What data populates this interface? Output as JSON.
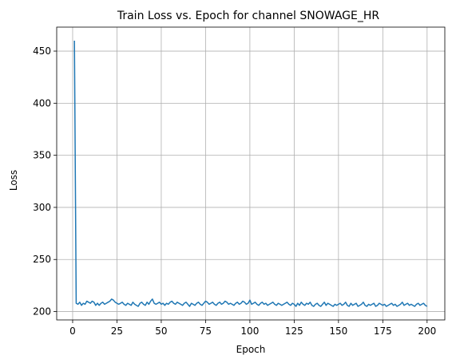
{
  "chart_data": {
    "type": "line",
    "title": "Train Loss vs. Epoch for channel SNOWAGE_HR",
    "xlabel": "Epoch",
    "ylabel": "Loss",
    "xlim": [
      -9,
      210
    ],
    "ylim": [
      192,
      473
    ],
    "xticks": [
      0,
      25,
      50,
      75,
      100,
      125,
      150,
      175,
      200
    ],
    "yticks": [
      200,
      250,
      300,
      350,
      400,
      450
    ],
    "grid": true,
    "series": [
      {
        "color": "#1f77b4",
        "x": [
          1,
          2,
          3,
          4,
          5,
          6,
          7,
          8,
          9,
          10,
          11,
          12,
          13,
          14,
          15,
          16,
          17,
          18,
          19,
          20,
          21,
          22,
          23,
          24,
          25,
          26,
          27,
          28,
          29,
          30,
          31,
          32,
          33,
          34,
          35,
          36,
          37,
          38,
          39,
          40,
          41,
          42,
          43,
          44,
          45,
          46,
          47,
          48,
          49,
          50,
          51,
          52,
          53,
          54,
          55,
          56,
          57,
          58,
          59,
          60,
          61,
          62,
          63,
          64,
          65,
          66,
          67,
          68,
          69,
          70,
          71,
          72,
          73,
          74,
          75,
          76,
          77,
          78,
          79,
          80,
          81,
          82,
          83,
          84,
          85,
          86,
          87,
          88,
          89,
          90,
          91,
          92,
          93,
          94,
          95,
          96,
          97,
          98,
          99,
          100,
          101,
          102,
          103,
          104,
          105,
          106,
          107,
          108,
          109,
          110,
          111,
          112,
          113,
          114,
          115,
          116,
          117,
          118,
          119,
          120,
          121,
          122,
          123,
          124,
          125,
          126,
          127,
          128,
          129,
          130,
          131,
          132,
          133,
          134,
          135,
          136,
          137,
          138,
          139,
          140,
          141,
          142,
          143,
          144,
          145,
          146,
          147,
          148,
          149,
          150,
          151,
          152,
          153,
          154,
          155,
          156,
          157,
          158,
          159,
          160,
          161,
          162,
          163,
          164,
          165,
          166,
          167,
          168,
          169,
          170,
          171,
          172,
          173,
          174,
          175,
          176,
          177,
          178,
          179,
          180,
          181,
          182,
          183,
          184,
          185,
          186,
          187,
          188,
          189,
          190,
          191,
          192,
          193,
          194,
          195,
          196,
          197,
          198,
          199,
          200
        ],
        "y": [
          460,
          208,
          207,
          209,
          206,
          208,
          207,
          210,
          209,
          208,
          210,
          209,
          206,
          208,
          206,
          208,
          209,
          207,
          208,
          209,
          210,
          212,
          211,
          209,
          208,
          207,
          208,
          209,
          207,
          206,
          208,
          207,
          206,
          209,
          207,
          206,
          205,
          208,
          209,
          207,
          206,
          209,
          207,
          210,
          212,
          208,
          207,
          208,
          209,
          207,
          208,
          206,
          208,
          207,
          209,
          210,
          208,
          207,
          209,
          208,
          207,
          206,
          208,
          209,
          207,
          205,
          208,
          207,
          206,
          208,
          209,
          207,
          206,
          208,
          210,
          209,
          207,
          208,
          209,
          207,
          206,
          208,
          209,
          207,
          208,
          210,
          209,
          207,
          208,
          207,
          206,
          208,
          209,
          207,
          208,
          210,
          209,
          207,
          208,
          211,
          207,
          208,
          209,
          207,
          206,
          208,
          209,
          207,
          208,
          206,
          207,
          208,
          209,
          207,
          206,
          208,
          207,
          206,
          207,
          208,
          209,
          207,
          206,
          208,
          207,
          205,
          208,
          206,
          209,
          207,
          206,
          208,
          207,
          209,
          206,
          205,
          207,
          208,
          206,
          205,
          207,
          209,
          206,
          208,
          207,
          206,
          205,
          207,
          206,
          207,
          208,
          206,
          207,
          209,
          206,
          205,
          208,
          206,
          207,
          208,
          205,
          206,
          207,
          209,
          206,
          205,
          207,
          206,
          207,
          208,
          205,
          206,
          208,
          207,
          206,
          207,
          205,
          206,
          207,
          208,
          206,
          207,
          205,
          206,
          207,
          209,
          206,
          207,
          208,
          206,
          207,
          206,
          205,
          207,
          208,
          206,
          207,
          208,
          206,
          205
        ]
      }
    ]
  }
}
